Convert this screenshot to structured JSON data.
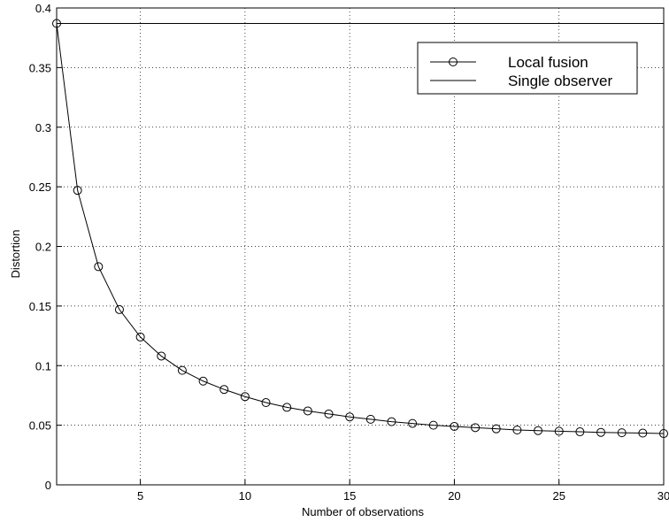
{
  "chart_data": {
    "type": "line",
    "title": "",
    "xlabel": "Number of observations",
    "ylabel": "Distortion",
    "xlim": [
      1,
      30
    ],
    "ylim": [
      0,
      0.4
    ],
    "xticks": [
      5,
      10,
      15,
      20,
      25,
      30
    ],
    "yticks": [
      0,
      0.05,
      0.1,
      0.15,
      0.2,
      0.25,
      0.3,
      0.35,
      0.4
    ],
    "grid": true,
    "legend_position": "top-right",
    "series": [
      {
        "name": "Local fusion",
        "marker": "circle",
        "x": [
          1,
          2,
          3,
          4,
          5,
          6,
          7,
          8,
          9,
          10,
          11,
          12,
          13,
          14,
          15,
          16,
          17,
          18,
          19,
          20,
          21,
          22,
          23,
          24,
          25,
          26,
          27,
          28,
          29,
          30
        ],
        "y": [
          0.387,
          0.247,
          0.183,
          0.147,
          0.124,
          0.108,
          0.096,
          0.087,
          0.08,
          0.074,
          0.069,
          0.065,
          0.062,
          0.0595,
          0.057,
          0.055,
          0.053,
          0.0515,
          0.05,
          0.049,
          0.048,
          0.047,
          0.046,
          0.0455,
          0.045,
          0.0445,
          0.044,
          0.0437,
          0.0434,
          0.043
        ]
      },
      {
        "name": "Single observer",
        "marker": "none",
        "x": [
          1,
          30
        ],
        "y": [
          0.387,
          0.387
        ]
      }
    ]
  }
}
